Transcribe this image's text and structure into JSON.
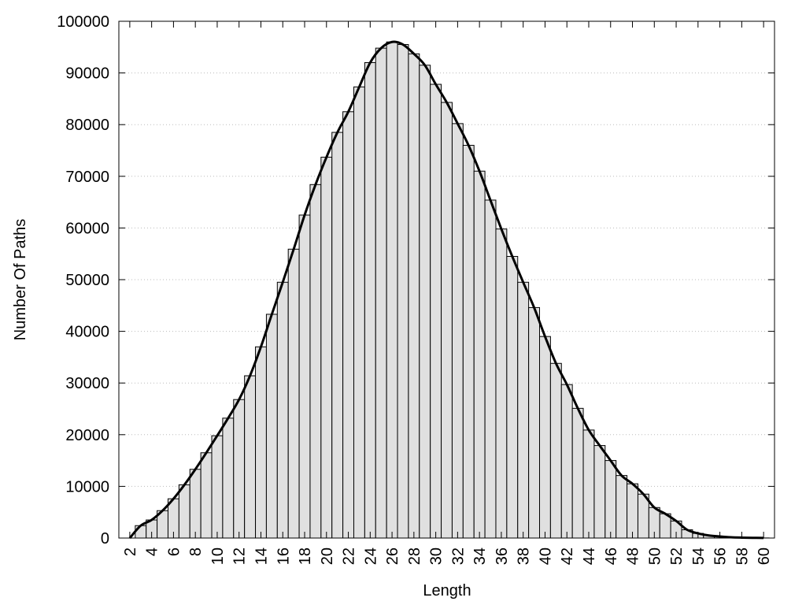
{
  "chart_data": {
    "type": "histogram",
    "xlabel": "Length",
    "ylabel": "Number Of Paths",
    "x": [
      2,
      3,
      4,
      5,
      6,
      7,
      8,
      9,
      10,
      11,
      12,
      13,
      14,
      15,
      16,
      17,
      18,
      19,
      20,
      21,
      22,
      23,
      24,
      25,
      26,
      27,
      28,
      29,
      30,
      31,
      32,
      33,
      34,
      35,
      36,
      37,
      38,
      39,
      40,
      41,
      42,
      43,
      44,
      45,
      46,
      47,
      48,
      49,
      50,
      51,
      52,
      53,
      54,
      55,
      56,
      57,
      58,
      59,
      60
    ],
    "values": [
      0,
      2400,
      3500,
      5300,
      7600,
      10300,
      13300,
      16500,
      19800,
      23200,
      26800,
      31400,
      37000,
      43300,
      49500,
      55900,
      62500,
      68400,
      73700,
      78500,
      82500,
      87300,
      92000,
      94800,
      96000,
      95500,
      93700,
      91500,
      87800,
      84300,
      80200,
      76000,
      71000,
      65400,
      59800,
      54500,
      49500,
      44600,
      39000,
      33800,
      29700,
      25100,
      20900,
      17900,
      15000,
      12100,
      10500,
      8500,
      5900,
      4700,
      3300,
      1600,
      900,
      500,
      300,
      150,
      80,
      40,
      20
    ],
    "color": "#e0e0e0",
    "line_color": "#000000",
    "xlim": [
      1,
      61
    ],
    "xticks": [
      2,
      4,
      6,
      8,
      10,
      12,
      14,
      16,
      18,
      20,
      22,
      24,
      26,
      28,
      30,
      32,
      34,
      36,
      38,
      40,
      42,
      44,
      46,
      48,
      50,
      52,
      54,
      56,
      58,
      60
    ],
    "ylim": [
      0,
      100000
    ],
    "yticks": [
      0,
      10000,
      20000,
      30000,
      40000,
      50000,
      60000,
      70000,
      80000,
      90000,
      100000
    ],
    "grid": true
  }
}
